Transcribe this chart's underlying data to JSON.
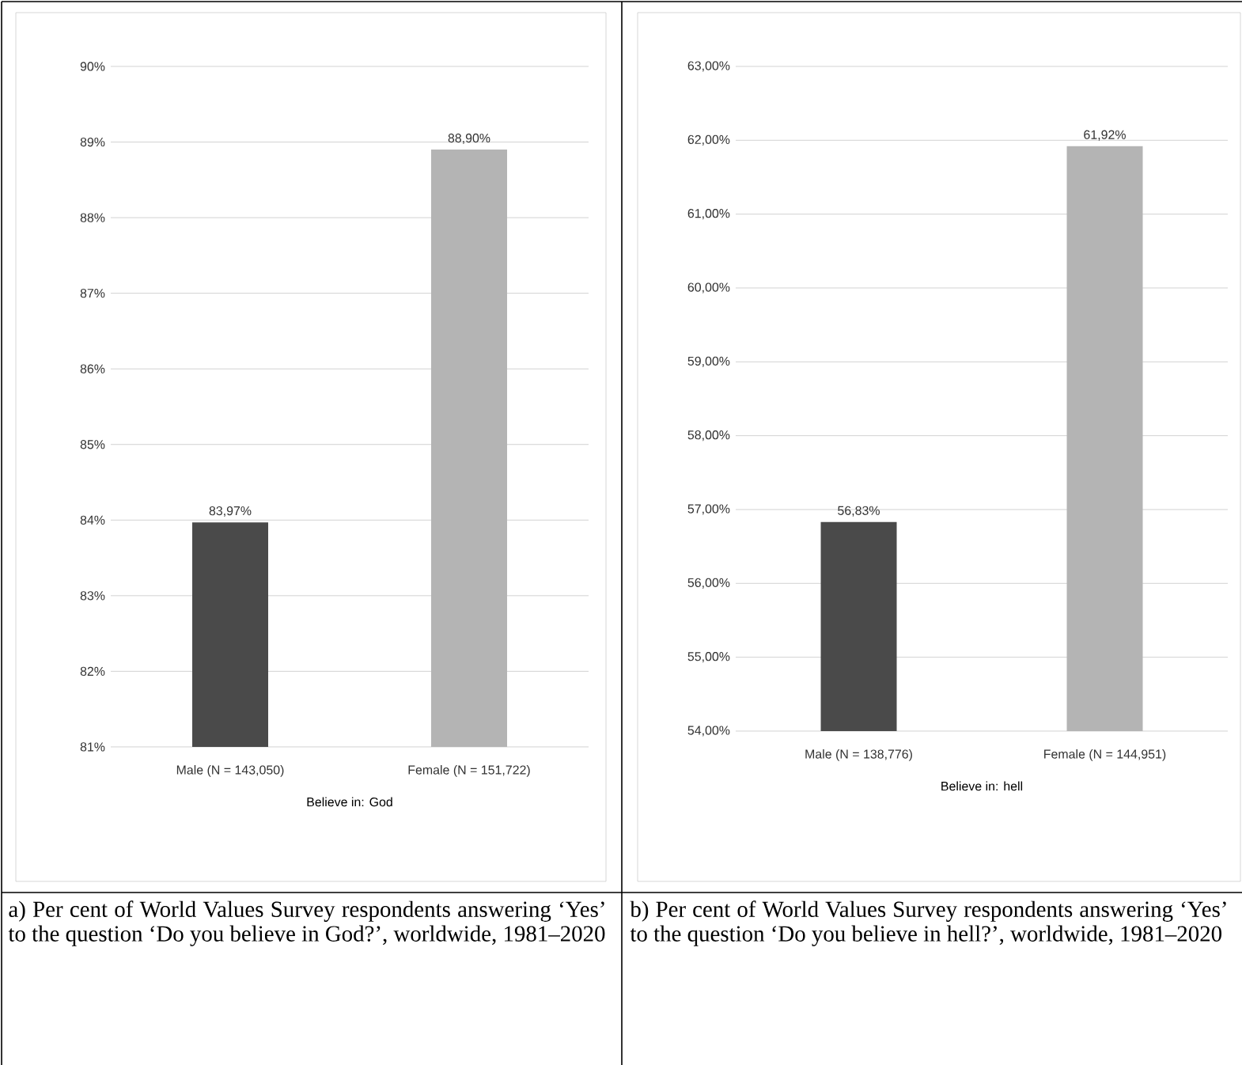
{
  "chart_data": [
    {
      "type": "bar",
      "categories": [
        "Male (N = 143,050)",
        "Female (N = 151,722)"
      ],
      "values": [
        83.97,
        88.9
      ],
      "value_labels": [
        "83,97%",
        "88,90%"
      ],
      "colors": [
        "#4a4a4a",
        "#b4b4b4"
      ],
      "xlabel": "Believe in: God",
      "ylim": [
        81,
        90
      ],
      "yticks": [
        {
          "value": 81,
          "label": "81%"
        },
        {
          "value": 82,
          "label": "82%"
        },
        {
          "value": 83,
          "label": "83%"
        },
        {
          "value": 84,
          "label": "84%"
        },
        {
          "value": 85,
          "label": "85%"
        },
        {
          "value": 86,
          "label": "86%"
        },
        {
          "value": 87,
          "label": "87%"
        },
        {
          "value": 88,
          "label": "88%"
        },
        {
          "value": 89,
          "label": "89%"
        },
        {
          "value": 90,
          "label": "90%"
        }
      ],
      "grid": "y",
      "annotations": [
        "a) Per cent of World Values Survey respondents answering ‘Yes’ to the question ‘Do you believe in God?’, worldwide, 1981–2020"
      ]
    },
    {
      "type": "bar",
      "categories": [
        "Male (N = 138,776)",
        "Female (N = 144,951)"
      ],
      "values": [
        56.83,
        61.92
      ],
      "value_labels": [
        "56,83%",
        "61,92%"
      ],
      "colors": [
        "#4a4a4a",
        "#b4b4b4"
      ],
      "xlabel": "Believe in: hell",
      "ylim": [
        54,
        63
      ],
      "yticks": [
        {
          "value": 54,
          "label": "54,00%"
        },
        {
          "value": 55,
          "label": "55,00%"
        },
        {
          "value": 56,
          "label": "56,00%"
        },
        {
          "value": 57,
          "label": "57,00%"
        },
        {
          "value": 58,
          "label": "58,00%"
        },
        {
          "value": 59,
          "label": "59,00%"
        },
        {
          "value": 60,
          "label": "60,00%"
        },
        {
          "value": 61,
          "label": "61,00%"
        },
        {
          "value": 62,
          "label": "62,00%"
        },
        {
          "value": 63,
          "label": "63,00%"
        }
      ],
      "grid": "y",
      "annotations": [
        "b) Per cent of World Values Survey respondents answering ‘Yes’ to the question ‘Do you believe in hell?’, worldwide, 1981–2020"
      ]
    }
  ]
}
